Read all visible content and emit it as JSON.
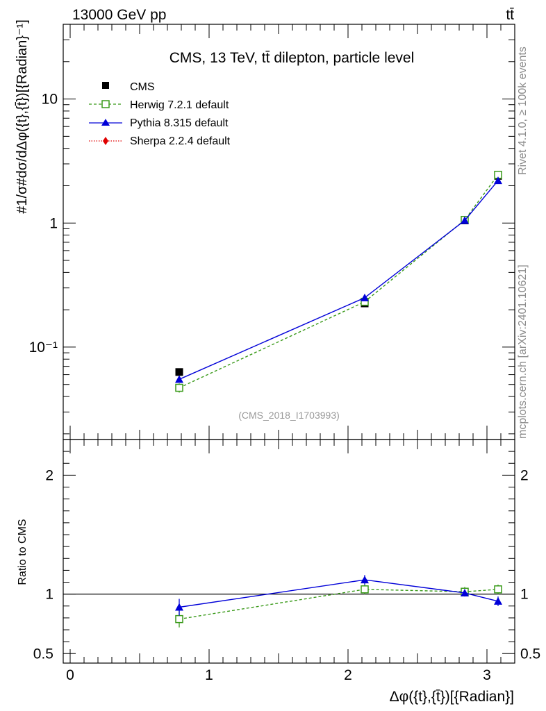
{
  "header": {
    "left_label": "13000 GeV pp",
    "right_label": "tt̄"
  },
  "side_labels": {
    "rivet": "Rivet 4.1.0, ≥ 100k events",
    "mcplots": "mcplots.cern.ch [arXiv:2401.10621]"
  },
  "colors": {
    "cms": "#000000",
    "herwig": "#3a9a1a",
    "pythia": "#0000d8",
    "sherpa": "#e00000",
    "watermark": "#999999"
  },
  "chart_data": [
    {
      "type": "line",
      "title": "CMS, 13 TeV, tt̄ dilepton, particle level",
      "watermark": "(CMS_2018_I1703993)",
      "ylabel": "#1/σ#dσ/dΔφ({t},{t̄})[{Radian}⁻¹]",
      "yscale": "log",
      "ylim": [
        0.018,
        40
      ],
      "xlim": [
        -0.05,
        3.2
      ],
      "yticks": [
        {
          "v": 0.1,
          "label": "10⁻¹"
        },
        {
          "v": 1,
          "label": "1"
        },
        {
          "v": 10,
          "label": "10"
        }
      ],
      "legend": [
        "CMS",
        "Herwig 7.2.1 default",
        "Pythia 8.315 default",
        "Sherpa 2.2.4 default"
      ],
      "x": [
        0.785,
        2.12,
        2.84,
        3.08
      ],
      "series": [
        {
          "name": "CMS",
          "key": "cms",
          "values": [
            0.063,
            0.225,
            1.05,
            2.4
          ],
          "err": [
            0.003,
            0.01,
            0.03,
            0.08
          ]
        },
        {
          "name": "Herwig 7.2.1 default",
          "key": "herwig",
          "values": [
            0.047,
            0.232,
            1.06,
            2.45
          ],
          "err": [
            0.004,
            0.008,
            0.03,
            0.08
          ]
        },
        {
          "name": "Pythia 8.315 default",
          "key": "pythia",
          "values": [
            0.055,
            0.25,
            1.05,
            2.2
          ],
          "err": [
            0.003,
            0.008,
            0.03,
            0.07
          ]
        }
      ]
    },
    {
      "type": "line",
      "ylabel": "Ratio to CMS",
      "xlabel": "Δφ({t},{t̄})[{Radian}]",
      "ylim": [
        0.42,
        2.3
      ],
      "xlim": [
        -0.05,
        3.2
      ],
      "yticks": [
        {
          "v": 0.5,
          "label": "0.5"
        },
        {
          "v": 1,
          "label": "1"
        },
        {
          "v": 2,
          "label": "2"
        }
      ],
      "xticks": [
        {
          "v": 0,
          "label": "0"
        },
        {
          "v": 1,
          "label": "1"
        },
        {
          "v": 2,
          "label": "2"
        },
        {
          "v": 3,
          "label": "3"
        }
      ],
      "reference": 1,
      "x": [
        0.785,
        2.12,
        2.84,
        3.08
      ],
      "series": [
        {
          "name": "Herwig 7.2.1 default",
          "key": "herwig",
          "values": [
            0.79,
            1.04,
            1.02,
            1.04
          ],
          "err": [
            0.07,
            0.04,
            0.04,
            0.04
          ]
        },
        {
          "name": "Pythia 8.315 default",
          "key": "pythia",
          "values": [
            0.89,
            1.12,
            1.01,
            0.94
          ],
          "err": [
            0.07,
            0.04,
            0.03,
            0.04
          ]
        }
      ]
    }
  ]
}
